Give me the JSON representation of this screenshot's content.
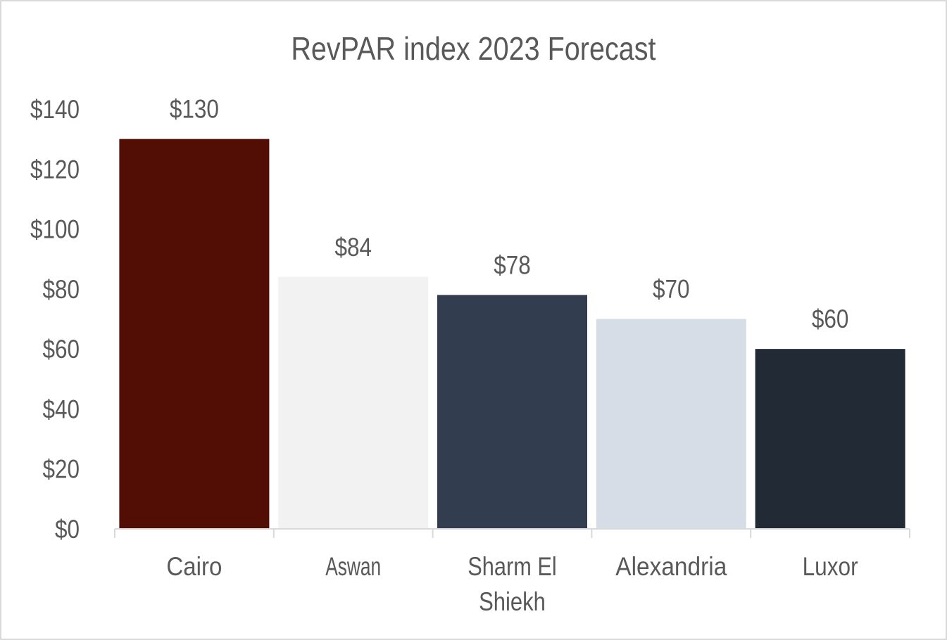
{
  "chart_data": {
    "type": "bar",
    "title": "RevPAR index 2023 Forecast",
    "categories": [
      "Cairo",
      "Aswan",
      "Sharm El Shiekh",
      "Alexandria",
      "Luxor"
    ],
    "category_lines": [
      [
        "Cairo"
      ],
      [
        "Aswan"
      ],
      [
        "Sharm El",
        "Shiekh"
      ],
      [
        "Alexandria"
      ],
      [
        "Luxor"
      ]
    ],
    "values": [
      130,
      84,
      78,
      70,
      60
    ],
    "data_labels": [
      "$130",
      "$84",
      "$78",
      "$70",
      "$60"
    ],
    "bar_colors": [
      "#520e04",
      "#f2f2f2",
      "#323e50",
      "#d7dde6",
      "#222a35"
    ],
    "ylim": [
      0,
      140
    ],
    "yticks": [
      0,
      20,
      40,
      60,
      80,
      100,
      120,
      140
    ],
    "ytick_labels": [
      "$0",
      "$20",
      "$40",
      "$60",
      "$80",
      "$100",
      "$120",
      "$140"
    ],
    "xlabel": "",
    "ylabel": "",
    "grid": false,
    "legend": false
  }
}
